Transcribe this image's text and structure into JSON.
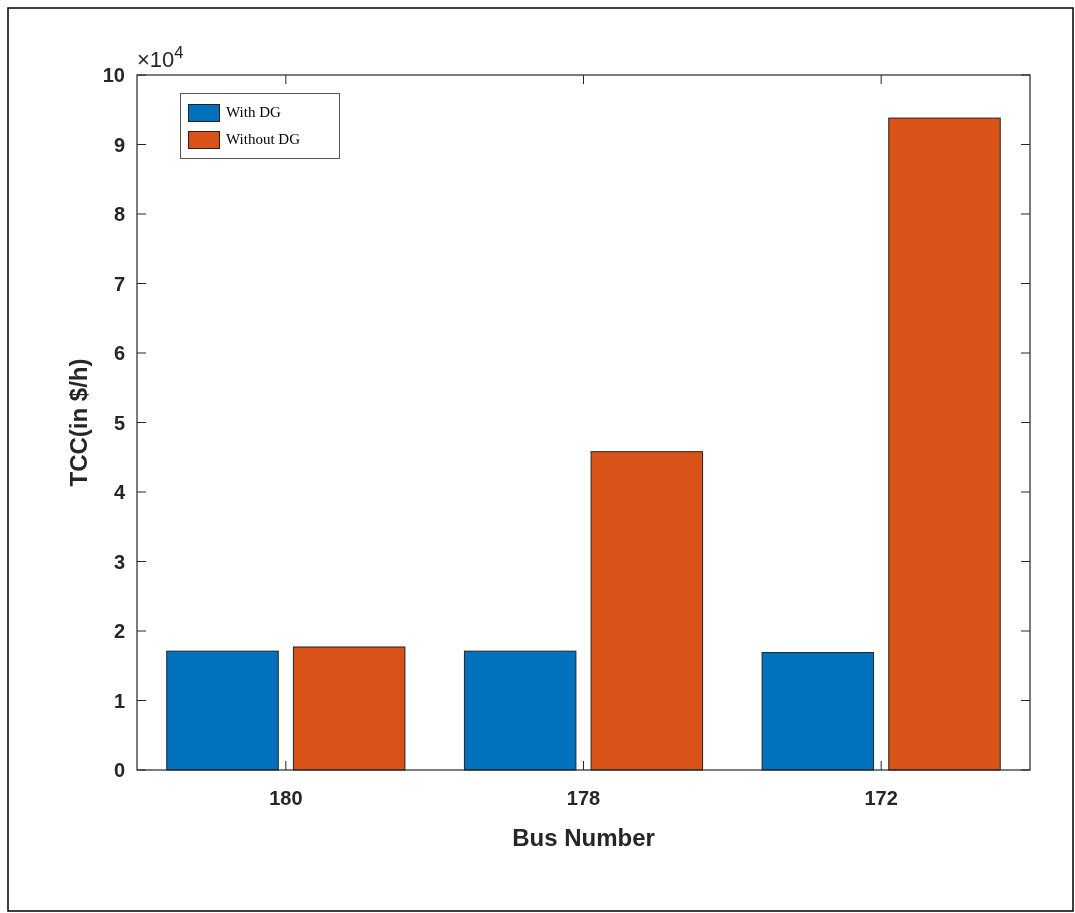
{
  "chart_data": {
    "type": "bar",
    "xlabel": "Bus Number",
    "ylabel": "TCC(in $/h)",
    "categories": [
      "180",
      "178",
      "172"
    ],
    "series": [
      {
        "name": "With DG",
        "color": "#0072bd",
        "values": [
          1.71,
          1.71,
          1.69
        ]
      },
      {
        "name": "Without DG",
        "color": "#d95319",
        "values": [
          1.77,
          4.58,
          9.38
        ]
      }
    ],
    "ylim": [
      0,
      10
    ],
    "yticks": [
      0,
      1,
      2,
      3,
      4,
      5,
      6,
      7,
      8,
      9,
      10
    ],
    "grid": false,
    "legend": "top left",
    "annotations": [
      "×10$^{4}$"
    ]
  }
}
